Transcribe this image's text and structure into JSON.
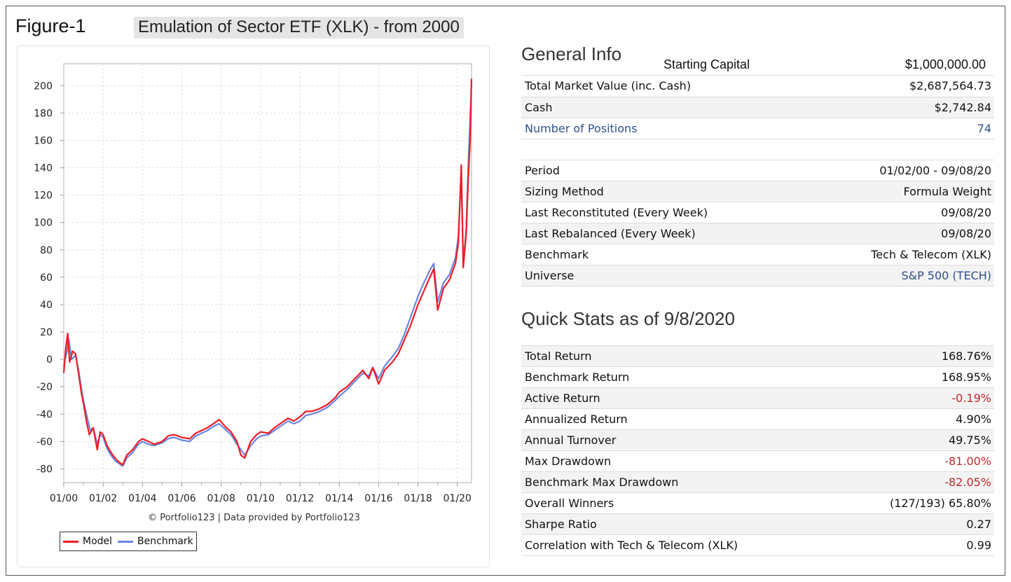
{
  "figure": {
    "label": "Figure-1",
    "title": "Emulation of Sector ETF (XLK) - from 2000"
  },
  "chart_data": {
    "type": "line",
    "x_tick_labels": [
      "01/00",
      "01/02",
      "01/04",
      "01/06",
      "01/08",
      "01/10",
      "01/12",
      "01/14",
      "01/16",
      "01/18",
      "01/20"
    ],
    "x_range": [
      2000.0,
      2020.72
    ],
    "y_ticks": [
      -80,
      -60,
      -40,
      -20,
      0,
      20,
      40,
      60,
      80,
      100,
      120,
      140,
      160,
      180,
      200
    ],
    "ylim": [
      -90,
      216
    ],
    "grid": true,
    "legend_position": "bottom-left",
    "series": [
      {
        "name": "Benchmark",
        "color": "#6a85e0",
        "x": [
          2000.0,
          2000.15,
          2000.25,
          2000.4,
          2000.6,
          2000.75,
          2000.9,
          2001.0,
          2001.2,
          2001.35,
          2001.5,
          2001.7,
          2001.85,
          2002.0,
          2002.2,
          2002.4,
          2002.6,
          2002.8,
          2003.0,
          2003.2,
          2003.5,
          2003.8,
          2004.0,
          2004.3,
          2004.6,
          2005.0,
          2005.3,
          2005.6,
          2006.0,
          2006.4,
          2006.7,
          2007.0,
          2007.3,
          2007.6,
          2007.9,
          2008.2,
          2008.5,
          2008.8,
          2009.0,
          2009.2,
          2009.5,
          2009.8,
          2010.0,
          2010.4,
          2010.7,
          2011.0,
          2011.4,
          2011.7,
          2012.0,
          2012.3,
          2012.6,
          2013.0,
          2013.4,
          2013.8,
          2014.0,
          2014.4,
          2014.8,
          2015.2,
          2015.5,
          2015.7,
          2016.0,
          2016.3,
          2016.7,
          2017.0,
          2017.3,
          2017.6,
          2018.0,
          2018.3,
          2018.6,
          2018.8,
          2019.0,
          2019.3,
          2019.6,
          2019.9,
          2020.05,
          2020.2,
          2020.3,
          2020.45,
          2020.55,
          2020.65,
          2020.72
        ],
        "values": [
          -5,
          5,
          15,
          0,
          3,
          -8,
          -22,
          -30,
          -43,
          -52,
          -50,
          -62,
          -55,
          -57,
          -65,
          -70,
          -74,
          -76,
          -78,
          -72,
          -68,
          -62,
          -60,
          -62,
          -63,
          -61,
          -58,
          -57,
          -59,
          -60,
          -56,
          -54,
          -52,
          -49,
          -47,
          -51,
          -55,
          -62,
          -66,
          -70,
          -63,
          -58,
          -56,
          -55,
          -52,
          -49,
          -45,
          -47,
          -45,
          -41,
          -40,
          -38,
          -35,
          -30,
          -27,
          -22,
          -16,
          -10,
          -12,
          -6,
          -14,
          -5,
          2,
          8,
          18,
          30,
          46,
          56,
          65,
          70,
          42,
          56,
          62,
          74,
          90,
          135,
          70,
          95,
          140,
          175,
          203
        ]
      },
      {
        "name": "Model",
        "color": "#ee1c24",
        "x": [
          2000.0,
          2000.1,
          2000.2,
          2000.3,
          2000.45,
          2000.6,
          2000.75,
          2000.9,
          2001.0,
          2001.15,
          2001.3,
          2001.5,
          2001.7,
          2001.85,
          2002.0,
          2002.2,
          2002.4,
          2002.6,
          2002.8,
          2003.0,
          2003.2,
          2003.5,
          2003.8,
          2004.0,
          2004.3,
          2004.6,
          2005.0,
          2005.3,
          2005.6,
          2006.0,
          2006.4,
          2006.7,
          2007.0,
          2007.3,
          2007.6,
          2007.9,
          2008.2,
          2008.5,
          2008.8,
          2009.0,
          2009.2,
          2009.5,
          2009.8,
          2010.0,
          2010.4,
          2010.7,
          2011.0,
          2011.4,
          2011.7,
          2012.0,
          2012.3,
          2012.6,
          2013.0,
          2013.4,
          2013.8,
          2014.0,
          2014.4,
          2014.8,
          2015.2,
          2015.5,
          2015.7,
          2016.0,
          2016.3,
          2016.7,
          2017.0,
          2017.3,
          2017.6,
          2018.0,
          2018.3,
          2018.6,
          2018.8,
          2019.0,
          2019.3,
          2019.6,
          2019.9,
          2020.05,
          2020.2,
          2020.3,
          2020.45,
          2020.55,
          2020.65,
          2020.72
        ],
        "values": [
          -10,
          8,
          19,
          -2,
          6,
          4,
          -10,
          -25,
          -32,
          -45,
          -55,
          -50,
          -66,
          -53,
          -55,
          -63,
          -68,
          -72,
          -75,
          -77,
          -70,
          -66,
          -60,
          -58,
          -60,
          -62,
          -60,
          -56,
          -55,
          -57,
          -58,
          -54,
          -52,
          -50,
          -47,
          -44,
          -49,
          -53,
          -60,
          -70,
          -72,
          -60,
          -55,
          -53,
          -54,
          -50,
          -47,
          -43,
          -45,
          -42,
          -38,
          -38,
          -36,
          -33,
          -28,
          -24,
          -20,
          -14,
          -8,
          -14,
          -6,
          -18,
          -8,
          -2,
          4,
          14,
          24,
          40,
          50,
          60,
          66,
          36,
          52,
          58,
          70,
          85,
          142,
          67,
          92,
          130,
          160,
          205
        ]
      }
    ],
    "credit": "© Portfolio123 | Data provided by Portfolio123"
  },
  "general_info": {
    "title": "General Info",
    "starting_capital_label": "Starting Capital",
    "starting_capital_value": "$1,000,000.00",
    "rows_a": [
      {
        "label": "Total Market Value (inc. Cash)",
        "value": "$2,687,564.73"
      },
      {
        "label": "Cash",
        "value": "$2,742.84"
      },
      {
        "label": "Number of Positions",
        "value": "74"
      }
    ],
    "rows_b": [
      {
        "label": "Period",
        "value": "01/02/00 - 09/08/20"
      },
      {
        "label": "Sizing Method",
        "value": "Formula Weight"
      },
      {
        "label": "Last Reconstituted (Every Week)",
        "value": "09/08/20"
      },
      {
        "label": "Last Rebalanced (Every Week)",
        "value": "09/08/20"
      },
      {
        "label": "Benchmark",
        "value": "Tech & Telecom (XLK)"
      },
      {
        "label": "Universe",
        "value": "S&P 500 (TECH)"
      }
    ]
  },
  "quick_stats": {
    "title": "Quick Stats as of 9/8/2020",
    "rows": [
      {
        "label": "Total Return",
        "value": "168.76%"
      },
      {
        "label": "Benchmark Return",
        "value": "168.95%"
      },
      {
        "label": "Active Return",
        "value": "-0.19%"
      },
      {
        "label": "Annualized Return",
        "value": "4.90%"
      },
      {
        "label": "Annual Turnover",
        "value": "49.75%"
      },
      {
        "label": "Max Drawdown",
        "value": "-81.00%"
      },
      {
        "label": "Benchmark Max Drawdown",
        "value": "-82.05%"
      },
      {
        "label": "Overall Winners",
        "value": "(127/193) 65.80%"
      },
      {
        "label": "Sharpe Ratio",
        "value": "0.27"
      },
      {
        "label": "Correlation with Tech & Telecom (XLK)",
        "value": "0.99"
      }
    ]
  },
  "colors": {
    "link_blue": "#2f4f8f",
    "negative_red": "#c0282a",
    "model_red": "#ee1c24",
    "benchmark_blue": "#6a85e0"
  }
}
